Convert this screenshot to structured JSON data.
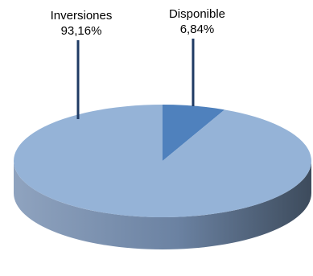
{
  "chart_data": {
    "type": "pie",
    "title": "",
    "slices": [
      {
        "name": "Inversiones",
        "value": 93.16,
        "label_value": "93,16%",
        "color": "#95b3d7"
      },
      {
        "name": "Disponible",
        "value": 6.84,
        "label_value": "6,84%",
        "color": "#4f81bd"
      }
    ],
    "legend": "none",
    "style": "3d"
  },
  "colors": {
    "leader_line": "#1f3b64",
    "side_dark": "#3d4b5c",
    "side_light": "#8fa3bf"
  }
}
